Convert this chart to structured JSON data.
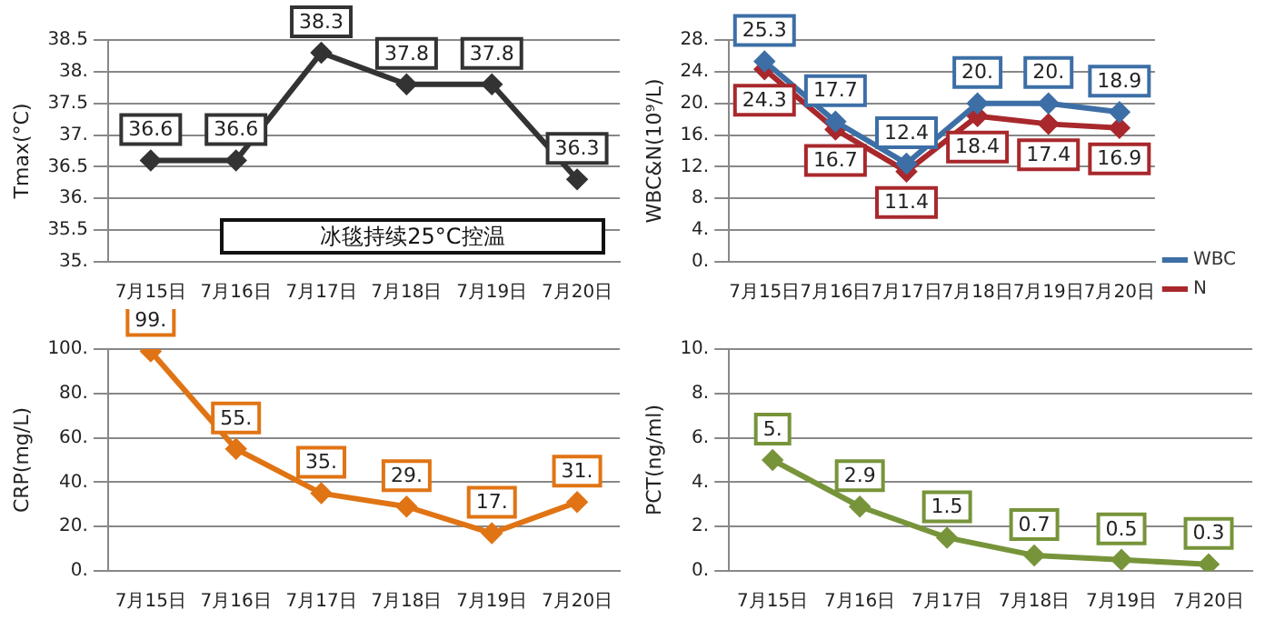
{
  "chart_data": [
    {
      "type": "line",
      "ylabel": "Tmax(°C)",
      "categories": [
        "7月15日",
        "7月16日",
        "7月17日",
        "7月18日",
        "7月19日",
        "7月20日"
      ],
      "series": [
        {
          "color": "#333333",
          "values": [
            36.6,
            36.6,
            38.3,
            37.8,
            37.8,
            36.3
          ],
          "value_labels": [
            "36.6",
            "36.6",
            "38.3",
            "37.8",
            "37.8",
            "36.3"
          ]
        }
      ],
      "ylim": [
        35,
        38.5
      ],
      "yticks": [
        {
          "value": 35,
          "label": "35."
        },
        35.5,
        {
          "value": 36,
          "label": "36."
        },
        36.5,
        {
          "value": 37,
          "label": "37."
        },
        37.5,
        {
          "value": 38,
          "label": "38."
        },
        38.5
      ],
      "annotations": [
        "冰毯持续25°C控温"
      ],
      "grid": "y",
      "marker": "diamond",
      "legend": false
    },
    {
      "type": "line",
      "ylabel": "WBC&N(10⁹/L)",
      "categories": [
        "7月15日",
        "7月16日",
        "7月17日",
        "7月18日",
        "7月19日",
        "7月20日"
      ],
      "series": [
        {
          "name": "WBC",
          "color": "#3d6fa6",
          "values": [
            25.3,
            17.7,
            12.4,
            20,
            20,
            18.9
          ],
          "value_labels": [
            "25.3",
            "17.7",
            "12.4",
            "20.",
            "20.",
            "18.9"
          ]
        },
        {
          "name": "N",
          "color": "#a8282c",
          "values": [
            24.3,
            16.7,
            11.4,
            18.4,
            17.4,
            16.9
          ],
          "value_labels": [
            "24.3",
            "16.7",
            "11.4",
            "18.4",
            "17.4",
            "16.9"
          ]
        }
      ],
      "ylim": [
        0,
        28
      ],
      "yticks": [
        {
          "value": 0,
          "label": "0."
        },
        {
          "value": 4,
          "label": "4."
        },
        {
          "value": 8,
          "label": "8."
        },
        {
          "value": 12,
          "label": "12."
        },
        {
          "value": 16,
          "label": "16."
        },
        {
          "value": 20,
          "label": "20."
        },
        {
          "value": 24,
          "label": "24."
        },
        {
          "value": 28,
          "label": "28."
        }
      ],
      "grid": "y",
      "marker": "diamond",
      "legend": "bottom right"
    },
    {
      "type": "line",
      "ylabel": "CRP(mg/L)",
      "categories": [
        "7月15日",
        "7月16日",
        "7月17日",
        "7月18日",
        "7月19日",
        "7月20日"
      ],
      "series": [
        {
          "color": "#e07414",
          "values": [
            99,
            55,
            35,
            29,
            17,
            31
          ],
          "value_labels": [
            "99.",
            "55.",
            "35.",
            "29.",
            "17.",
            "31."
          ]
        }
      ],
      "ylim": [
        0,
        100
      ],
      "yticks": [
        {
          "value": 0,
          "label": "0."
        },
        {
          "value": 20,
          "label": "20."
        },
        {
          "value": 40,
          "label": "40."
        },
        {
          "value": 60,
          "label": "60."
        },
        {
          "value": 80,
          "label": "80."
        },
        {
          "value": 100,
          "label": "100."
        }
      ],
      "grid": "y",
      "marker": "diamond",
      "legend": false
    },
    {
      "type": "line",
      "ylabel": "PCT(ng/ml)",
      "categories": [
        "7月15日",
        "7月16日",
        "7月17日",
        "7月18日",
        "7月19日",
        "7月20日"
      ],
      "series": [
        {
          "color": "#77943a",
          "values": [
            5,
            2.9,
            1.5,
            0.7,
            0.5,
            0.3
          ],
          "value_labels": [
            "5.",
            "2.9",
            "1.5",
            "0.7",
            "0.5",
            "0.3"
          ]
        }
      ],
      "ylim": [
        0,
        10
      ],
      "yticks": [
        {
          "value": 0,
          "label": "0."
        },
        {
          "value": 2,
          "label": "2."
        },
        {
          "value": 4,
          "label": "4."
        },
        {
          "value": 6,
          "label": "6."
        },
        {
          "value": 8,
          "label": "8."
        },
        {
          "value": 10,
          "label": "10."
        }
      ],
      "grid": "y",
      "marker": "diamond",
      "legend": false
    }
  ]
}
